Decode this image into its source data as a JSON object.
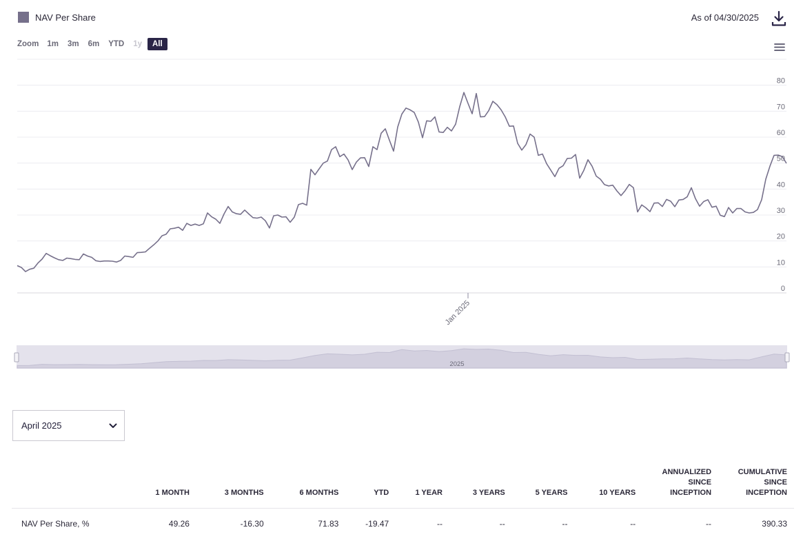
{
  "legend": {
    "label": "NAV Per Share",
    "color": "#76708b"
  },
  "as_of": "As of 04/30/2025",
  "icons": {
    "download": "download-icon",
    "menu": "hamburger-menu-icon",
    "select": "chevron-down-icon"
  },
  "zoom": {
    "label": "Zoom",
    "buttons": [
      {
        "label": "1m",
        "state": "normal"
      },
      {
        "label": "3m",
        "state": "normal"
      },
      {
        "label": "6m",
        "state": "normal"
      },
      {
        "label": "YTD",
        "state": "normal"
      },
      {
        "label": "1y",
        "state": "disabled"
      },
      {
        "label": "All",
        "state": "active"
      }
    ]
  },
  "chart_data": {
    "type": "line",
    "series": [
      {
        "name": "NAV Per Share",
        "color": "#76708b",
        "values": [
          10.5,
          9.8,
          8.2,
          9.1,
          9.5,
          11.5,
          13,
          15.2,
          14.3,
          13.5,
          12.8,
          12.5,
          13.4,
          13.2,
          12.9,
          12.8,
          15,
          14.2,
          13.7,
          12.4,
          12.1,
          12.3,
          12.3,
          12.2,
          11.9,
          12.5,
          14.2,
          14.0,
          13.7,
          15.5,
          15.6,
          15.8,
          17.2,
          18.5,
          20.0,
          22.0,
          22.6,
          24.7,
          24.9,
          25.3,
          24.1,
          26.8,
          26,
          26.5,
          26.0,
          26.6,
          30.8,
          29.3,
          28.4,
          26.8,
          30.4,
          33.3,
          31.2,
          30.5,
          30.3,
          31.9,
          30.4,
          29.0,
          28.8,
          29.2,
          27.8,
          25.0,
          29.7,
          30.0,
          29.2,
          29.3,
          27.2,
          29.2,
          34.0,
          34.5,
          33.8,
          47.6,
          45.5,
          47.8,
          50.0,
          50.8,
          55.2,
          56.3,
          52.5,
          53.5,
          51.2,
          47.5,
          50.4,
          52.0,
          52.1,
          48.7,
          56.3,
          55.2,
          61.5,
          63.2,
          58.8,
          54.6,
          63.9,
          68.9,
          71.2,
          70.5,
          69.5,
          65.8,
          59.8,
          66.3,
          66.1,
          67.8,
          62.0,
          61.8,
          63.8,
          62.4,
          65.0,
          71.8,
          77.2,
          73.0,
          69.0,
          76.8,
          67.8,
          67.9,
          70.2,
          73.8,
          72.5,
          70.5,
          67.8,
          64.2,
          64.3,
          57.6,
          55.0,
          57.1,
          61.2,
          60.0,
          53.0,
          53.5,
          49.8,
          47.3,
          44.8,
          48.0,
          49.0,
          51.8,
          51.9,
          53.3,
          44.2,
          47.2,
          51.3,
          48.8,
          45.0,
          43.8,
          41.7,
          41.2,
          41.5,
          39.3,
          37.5,
          39.4,
          41.8,
          40.5,
          31.2,
          33.9,
          32.8,
          31.3,
          34.6,
          34.7,
          33.3,
          36.0,
          35.3,
          33.2,
          35.8,
          36.0,
          37.0,
          40.5,
          36.3,
          33.4,
          35.2,
          35.9,
          33.0,
          33.4,
          29.9,
          29.4,
          32.9,
          30.8,
          32.5,
          32.5,
          31.2,
          30.8,
          31.0,
          32.1,
          35.9,
          43.8,
          48.8,
          53.0,
          53.1,
          52.5,
          49.9
        ]
      }
    ],
    "x_tick_labels": [
      "Jan 2025"
    ],
    "x_tick_index": 109,
    "y_ticks": [
      "0",
      "10",
      "20",
      "30",
      "40",
      "50",
      "60",
      "70",
      "80"
    ],
    "ylim": [
      0,
      90
    ],
    "grid": true,
    "navigator_label": "2025"
  },
  "selector": {
    "value": "April 2025"
  },
  "table": {
    "headers": [
      "",
      "1 MONTH",
      "3 MONTHS",
      "6 MONTHS",
      "YTD",
      "1 YEAR",
      "3 YEARS",
      "5 YEARS",
      "10 YEARS",
      "ANNUALIZED SINCE INCEPTION",
      "CUMULATIVE SINCE INCEPTION"
    ],
    "rows": [
      {
        "label": "NAV Per Share, %",
        "cells": [
          "49.26",
          "-16.30",
          "71.83",
          "-19.47",
          "--",
          "--",
          "--",
          "--",
          "--",
          "390.33"
        ]
      }
    ]
  }
}
